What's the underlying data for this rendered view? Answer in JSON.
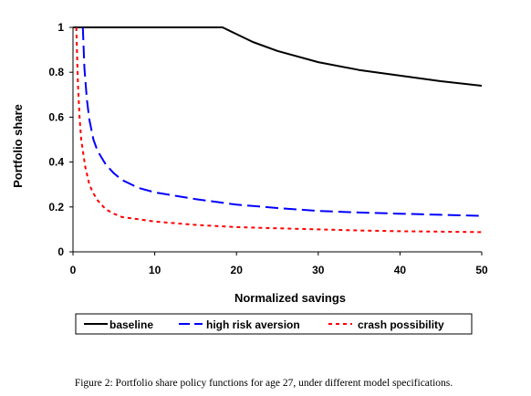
{
  "caption": "Figure 2:  Portfolio share policy functions for age 27, under different model specifications.",
  "chart_data": {
    "type": "line",
    "title": "",
    "xlabel": "Normalized savings",
    "ylabel": "Portfolio share",
    "xlim": [
      0,
      50
    ],
    "ylim": [
      0,
      1
    ],
    "xticks": [
      "0",
      "10",
      "20",
      "30",
      "40",
      "50"
    ],
    "yticks": [
      "0",
      "0.2",
      "0.4",
      "0.6",
      "0.8",
      "1"
    ],
    "grid": false,
    "legend_position": "bottom",
    "series": [
      {
        "name": "baseline",
        "color": "#000000",
        "dash": "solid",
        "x": [
          0,
          5,
          10,
          15,
          18.3,
          20,
          22,
          25,
          30,
          35,
          40,
          45,
          50
        ],
        "y": [
          1,
          1,
          1,
          1,
          1,
          0.97,
          0.935,
          0.895,
          0.845,
          0.81,
          0.785,
          0.76,
          0.74
        ]
      },
      {
        "name": "high risk aversion",
        "color": "#0000ff",
        "dash": "long-dash",
        "x": [
          1.2,
          1.4,
          1.7,
          2,
          2.5,
          3,
          4,
          5,
          6,
          8,
          10,
          15,
          20,
          25,
          30,
          35,
          40,
          45,
          50
        ],
        "y": [
          1,
          0.82,
          0.68,
          0.59,
          0.5,
          0.45,
          0.39,
          0.35,
          0.32,
          0.285,
          0.265,
          0.235,
          0.21,
          0.195,
          0.182,
          0.175,
          0.17,
          0.165,
          0.16
        ]
      },
      {
        "name": "crash possibility",
        "color": "#ff0000",
        "dash": "short-dash",
        "x": [
          0.4,
          0.6,
          0.8,
          1,
          1.5,
          2,
          2.5,
          3,
          4,
          5,
          6,
          8,
          10,
          15,
          20,
          25,
          30,
          35,
          40,
          45,
          50
        ],
        "y": [
          1,
          0.75,
          0.6,
          0.5,
          0.38,
          0.3,
          0.26,
          0.23,
          0.19,
          0.17,
          0.155,
          0.145,
          0.135,
          0.12,
          0.11,
          0.105,
          0.1,
          0.095,
          0.092,
          0.09,
          0.088
        ]
      }
    ]
  }
}
